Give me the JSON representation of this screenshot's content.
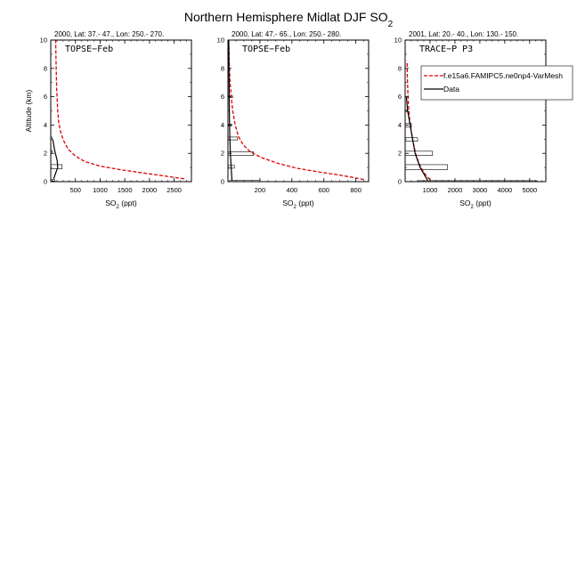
{
  "figure": {
    "title_main": "Northern Hemisphere Midlat DJF SO",
    "title_sub": "2"
  },
  "legend": {
    "model_label": "f.e15a6.FAMIPC5.ne0np4-VarMesh",
    "data_label": "Data",
    "model_color": "#e00000",
    "data_color": "#000000"
  },
  "chart_data": [
    {
      "type": "line",
      "header": "2000, Lat: 37.- 47., Lon: 250.- 270.",
      "campaign": "TOPSE−Feb",
      "xlabel_main": "SO",
      "xlabel_sub": "2",
      "xlabel_unit": " (ppt)",
      "ylabel": "Altitude (km)",
      "xlim": [
        0,
        2850
      ],
      "ylim": [
        0,
        10
      ],
      "xticks": [
        500,
        1000,
        1500,
        2000,
        2500
      ],
      "xticklabels": [
        "500",
        "1000",
        "1500",
        "2000",
        "2500"
      ],
      "yticks": [
        0,
        2,
        4,
        6,
        8,
        10
      ],
      "yticklabels": [
        "0",
        "2",
        "4",
        "6",
        "8",
        "10"
      ],
      "model": {
        "x": [
          2700,
          2500,
          2200,
          1800,
          1400,
          1000,
          700,
          500,
          350,
          260,
          200,
          160,
          140,
          120,
          110,
          100
        ],
        "y": [
          0.2,
          0.3,
          0.45,
          0.65,
          0.85,
          1.1,
          1.4,
          1.8,
          2.3,
          2.9,
          3.5,
          4.2,
          5.0,
          6.5,
          8.0,
          10.0
        ]
      },
      "data": {
        "x": [
          60,
          100,
          140,
          130,
          80,
          40
        ],
        "y": [
          0.2,
          0.6,
          1.0,
          1.5,
          2.2,
          3.0
        ]
      },
      "boxes": [
        {
          "x0": 0,
          "x1": 230,
          "y0": 0.9,
          "y1": 1.2
        },
        {
          "x0": 20,
          "x1": 80,
          "y0": 0.05,
          "y1": 0.15
        },
        {
          "x0": 5,
          "x1": 30,
          "y0": 2.0,
          "y1": 2.2
        },
        {
          "x0": 5,
          "x1": 25,
          "y0": 3.0,
          "y1": 3.15
        }
      ]
    },
    {
      "type": "line",
      "header": "2000, Lat: 47.- 65., Lon: 250.- 280.",
      "campaign": "TOPSE−Feb",
      "xlabel_main": "SO",
      "xlabel_sub": "2",
      "xlabel_unit": " (ppt)",
      "xlim": [
        0,
        880
      ],
      "ylim": [
        0,
        10
      ],
      "xticks": [
        200,
        400,
        600,
        800
      ],
      "xticklabels": [
        "200",
        "400",
        "600",
        "800"
      ],
      "yticks": [
        0,
        2,
        4,
        6,
        8,
        10
      ],
      "yticklabels": [
        "0",
        "2",
        "4",
        "6",
        "8",
        "10"
      ],
      "model": {
        "x": [
          850,
          780,
          680,
          560,
          430,
          310,
          210,
          140,
          95,
          65,
          45,
          30,
          20,
          12,
          8,
          5
        ],
        "y": [
          0.15,
          0.3,
          0.5,
          0.7,
          0.95,
          1.3,
          1.7,
          2.1,
          2.6,
          3.2,
          4.0,
          5.0,
          6.0,
          7.2,
          8.5,
          10.0
        ]
      },
      "data": {
        "x": [
          25,
          20,
          15,
          12,
          10,
          8,
          5
        ],
        "y": [
          0.1,
          1.0,
          2.0,
          3.0,
          4.0,
          6.0,
          10.0
        ]
      },
      "boxes": [
        {
          "x0": 10,
          "x1": 200,
          "y0": 0.0,
          "y1": 0.08
        },
        {
          "x0": 0,
          "x1": 40,
          "y0": 0.95,
          "y1": 1.15
        },
        {
          "x0": 0,
          "x1": 160,
          "y0": 1.85,
          "y1": 2.1
        },
        {
          "x0": 0,
          "x1": 60,
          "y0": 2.95,
          "y1": 3.15
        },
        {
          "x0": 0,
          "x1": 25,
          "y0": 3.95,
          "y1": 4.05
        },
        {
          "x0": 0,
          "x1": 30,
          "y0": 5.95,
          "y1": 6.05
        }
      ]
    },
    {
      "type": "line",
      "header": "2001, Lat: 20.- 40., Lon: 130.- 150.",
      "campaign": "TRACE−P P3",
      "xlabel_main": "SO",
      "xlabel_sub": "2",
      "xlabel_unit": " (ppt)",
      "xlim": [
        0,
        5650
      ],
      "ylim": [
        0,
        10
      ],
      "xticks": [
        1000,
        2000,
        3000,
        4000,
        5000
      ],
      "xticklabels": [
        "1000",
        "2000",
        "3000",
        "4000",
        "5000"
      ],
      "yticks": [
        0,
        2,
        4,
        6,
        8,
        10
      ],
      "yticklabels": [
        "0",
        "2",
        "4",
        "6",
        "8",
        "10"
      ],
      "model": {
        "x": [
          1000,
          850,
          700,
          550,
          420,
          320,
          240,
          180,
          140,
          110,
          90,
          80
        ],
        "y": [
          0.15,
          0.4,
          0.8,
          1.3,
          2.0,
          2.8,
          3.6,
          4.4,
          5.2,
          6.2,
          7.4,
          8.5
        ]
      },
      "data": {
        "x": [
          900,
          600,
          400,
          300,
          200,
          100,
          50
        ],
        "y": [
          0.1,
          1.0,
          2.0,
          3.0,
          4.0,
          5.0,
          6.0
        ]
      },
      "boxes": [
        {
          "x0": 500,
          "x1": 5300,
          "y0": 0.0,
          "y1": 0.07
        },
        {
          "x0": 0,
          "x1": 1700,
          "y0": 0.85,
          "y1": 1.2
        },
        {
          "x0": 0,
          "x1": 1100,
          "y0": 1.85,
          "y1": 2.15
        },
        {
          "x0": 0,
          "x1": 500,
          "y0": 2.85,
          "y1": 3.1
        },
        {
          "x0": 0,
          "x1": 250,
          "y0": 3.85,
          "y1": 4.1
        },
        {
          "x0": 0,
          "x1": 80,
          "y0": 4.95,
          "y1": 5.05
        }
      ]
    }
  ]
}
